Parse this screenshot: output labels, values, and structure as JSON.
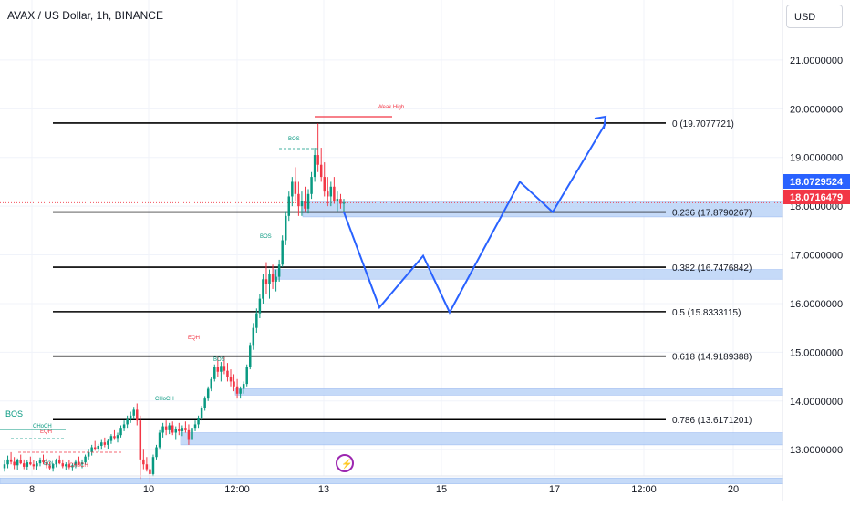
{
  "header": {
    "title": "AVAX / US Dollar, 1h, BINANCE",
    "currency": "USD"
  },
  "colors": {
    "up": "#089981",
    "down": "#f23645",
    "path": "#2962ff",
    "zone": "#bbd4f7",
    "zone_border": "#8fb2ef"
  },
  "chart_data": {
    "type": "candlestick",
    "title": "AVAX / US Dollar, 1h, BINANCE",
    "xlabel": "",
    "ylabel": "",
    "ylim": [
      12.3,
      22.0
    ],
    "x_tick_labels": [
      "8",
      "10",
      "12:00",
      "13",
      "15",
      "17",
      "12:00",
      "20"
    ],
    "y_tick_labels": [
      "13.0000000",
      "14.0000000",
      "15.0000000",
      "16.0000000",
      "17.0000000",
      "18.0000000",
      "19.0000000",
      "20.0000000",
      "21.0000000"
    ],
    "y_ticks": [
      13,
      14,
      15,
      16,
      17,
      18,
      19,
      20,
      21
    ],
    "price_badges": [
      {
        "text": "18.0729524",
        "value": 18.0729524,
        "color": "#2962ff"
      },
      {
        "text": "18.0716479",
        "value": 18.0716479,
        "color": "#f23645"
      }
    ],
    "fib_levels": [
      {
        "label": "0 (19.7077721)",
        "value": 19.7077721
      },
      {
        "label": "0.236 (17.8790267)",
        "value": 17.8790267
      },
      {
        "label": "0.382 (16.7476842)",
        "value": 16.7476842
      },
      {
        "label": "0.5 (15.8333115)",
        "value": 15.8333115
      },
      {
        "label": "0.618 (14.9189388)",
        "value": 14.9189388
      },
      {
        "label": "0.786 (13.6171201)",
        "value": 13.6171201
      }
    ],
    "zones": [
      {
        "low": 17.78,
        "high": 18.1
      },
      {
        "low": 16.5,
        "high": 16.7
      },
      {
        "low": 14.12,
        "high": 14.25
      },
      {
        "low": 13.1,
        "high": 13.35
      },
      {
        "low": 12.3,
        "high": 12.42
      }
    ],
    "annotations": [
      {
        "text": "BOS",
        "color": "#089981"
      },
      {
        "text": "CHoCH",
        "color": "#089981"
      },
      {
        "text": "EQH",
        "color": "#f23645"
      },
      {
        "text": "EQL",
        "color": "#089981"
      },
      {
        "text": "CHoCH",
        "color": "#f23645"
      },
      {
        "text": "CHoCH",
        "color": "#089981"
      },
      {
        "text": "BOS",
        "color": "#089981"
      },
      {
        "text": "EQH",
        "color": "#f23645"
      },
      {
        "text": "BOS",
        "color": "#089981"
      },
      {
        "text": "BOS",
        "color": "#089981"
      },
      {
        "text": "Weak High",
        "color": "#f23645"
      }
    ],
    "projection_path": [
      17.88,
      15.92,
      16.98,
      15.82,
      18.5,
      17.88,
      19.7
    ],
    "candles": [
      [
        12.62,
        12.78,
        12.55,
        12.7
      ],
      [
        12.7,
        12.88,
        12.62,
        12.8
      ],
      [
        12.8,
        12.95,
        12.7,
        12.75
      ],
      [
        12.75,
        12.85,
        12.6,
        12.68
      ],
      [
        12.68,
        12.82,
        12.58,
        12.78
      ],
      [
        12.78,
        12.9,
        12.7,
        12.72
      ],
      [
        12.72,
        12.8,
        12.6,
        12.65
      ],
      [
        12.65,
        12.78,
        12.58,
        12.74
      ],
      [
        12.74,
        12.86,
        12.68,
        12.7
      ],
      [
        12.7,
        12.78,
        12.6,
        12.66
      ],
      [
        12.66,
        12.76,
        12.58,
        12.72
      ],
      [
        12.72,
        12.84,
        12.66,
        12.78
      ],
      [
        12.78,
        12.9,
        12.7,
        12.74
      ],
      [
        12.74,
        12.82,
        12.62,
        12.68
      ],
      [
        12.68,
        12.75,
        12.58,
        12.62
      ],
      [
        12.62,
        12.72,
        12.55,
        12.7
      ],
      [
        12.7,
        12.82,
        12.64,
        12.78
      ],
      [
        12.78,
        12.88,
        12.7,
        12.72
      ],
      [
        12.72,
        12.8,
        12.62,
        12.66
      ],
      [
        12.66,
        12.74,
        12.58,
        12.7
      ],
      [
        12.7,
        12.78,
        12.6,
        12.64
      ],
      [
        12.64,
        12.72,
        12.56,
        12.68
      ],
      [
        12.68,
        12.8,
        12.62,
        12.75
      ],
      [
        12.75,
        12.86,
        12.68,
        12.7
      ],
      [
        12.7,
        12.8,
        12.62,
        12.74
      ],
      [
        12.74,
        12.9,
        12.7,
        12.86
      ],
      [
        12.86,
        13.0,
        12.8,
        12.95
      ],
      [
        12.95,
        13.1,
        12.88,
        13.05
      ],
      [
        13.05,
        13.18,
        12.98,
        13.02
      ],
      [
        13.02,
        13.12,
        12.95,
        13.08
      ],
      [
        13.08,
        13.2,
        13.0,
        13.15
      ],
      [
        13.15,
        13.25,
        13.05,
        13.1
      ],
      [
        13.1,
        13.22,
        13.02,
        13.18
      ],
      [
        13.18,
        13.32,
        13.12,
        13.28
      ],
      [
        13.28,
        13.4,
        13.2,
        13.24
      ],
      [
        13.24,
        13.35,
        13.15,
        13.3
      ],
      [
        13.3,
        13.5,
        13.25,
        13.45
      ],
      [
        13.45,
        13.6,
        13.38,
        13.52
      ],
      [
        13.52,
        13.7,
        13.45,
        13.62
      ],
      [
        13.62,
        13.78,
        13.55,
        13.7
      ],
      [
        13.7,
        13.88,
        13.62,
        13.82
      ],
      [
        13.82,
        13.95,
        13.5,
        13.6
      ],
      [
        13.6,
        13.7,
        12.4,
        12.8
      ],
      [
        12.8,
        13.0,
        12.6,
        12.7
      ],
      [
        12.7,
        12.85,
        12.55,
        12.6
      ],
      [
        12.6,
        12.7,
        12.32,
        12.5
      ],
      [
        12.5,
        12.9,
        12.45,
        12.85
      ],
      [
        12.85,
        13.1,
        12.8,
        13.05
      ],
      [
        13.05,
        13.4,
        13.0,
        13.35
      ],
      [
        13.35,
        13.55,
        13.25,
        13.48
      ],
      [
        13.48,
        13.6,
        13.3,
        13.4
      ],
      [
        13.4,
        13.55,
        13.32,
        13.5
      ],
      [
        13.5,
        13.58,
        13.3,
        13.35
      ],
      [
        13.35,
        13.48,
        13.2,
        13.42
      ],
      [
        13.42,
        13.55,
        13.3,
        13.38
      ],
      [
        13.38,
        13.5,
        13.28,
        13.45
      ],
      [
        13.45,
        13.58,
        13.35,
        13.4
      ],
      [
        13.4,
        13.52,
        13.1,
        13.2
      ],
      [
        13.2,
        13.5,
        13.15,
        13.45
      ],
      [
        13.45,
        13.6,
        13.38,
        13.52
      ],
      [
        13.52,
        13.7,
        13.45,
        13.65
      ],
      [
        13.65,
        13.9,
        13.6,
        13.85
      ],
      [
        13.85,
        14.1,
        13.8,
        14.05
      ],
      [
        14.05,
        14.3,
        14.0,
        14.25
      ],
      [
        14.25,
        14.5,
        14.2,
        14.45
      ],
      [
        14.45,
        14.75,
        14.4,
        14.7
      ],
      [
        14.7,
        14.9,
        14.5,
        14.6
      ],
      [
        14.6,
        14.8,
        14.4,
        14.72
      ],
      [
        14.72,
        14.9,
        14.55,
        14.62
      ],
      [
        14.62,
        14.78,
        14.4,
        14.5
      ],
      [
        14.5,
        14.65,
        14.3,
        14.4
      ],
      [
        14.4,
        14.55,
        14.2,
        14.3
      ],
      [
        14.3,
        14.45,
        14.05,
        14.15
      ],
      [
        14.15,
        14.3,
        14.05,
        14.25
      ],
      [
        14.25,
        14.4,
        14.15,
        14.35
      ],
      [
        14.35,
        14.75,
        14.3,
        14.7
      ],
      [
        14.7,
        15.2,
        14.65,
        15.15
      ],
      [
        15.15,
        15.6,
        15.05,
        15.5
      ],
      [
        15.5,
        15.9,
        15.4,
        15.8
      ],
      [
        15.8,
        16.2,
        15.7,
        16.1
      ],
      [
        16.1,
        16.6,
        16.0,
        16.5
      ],
      [
        16.5,
        16.85,
        16.2,
        16.4
      ],
      [
        16.4,
        16.7,
        16.1,
        16.6
      ],
      [
        16.6,
        16.8,
        16.3,
        16.45
      ],
      [
        16.45,
        16.7,
        16.25,
        16.55
      ],
      [
        16.55,
        16.9,
        16.45,
        16.8
      ],
      [
        16.8,
        17.4,
        16.75,
        17.3
      ],
      [
        17.3,
        17.9,
        17.2,
        17.8
      ],
      [
        17.8,
        18.3,
        17.7,
        18.2
      ],
      [
        18.2,
        18.6,
        18.0,
        18.5
      ],
      [
        18.5,
        18.8,
        18.1,
        18.25
      ],
      [
        18.25,
        18.5,
        17.8,
        18.0
      ],
      [
        18.0,
        18.3,
        17.8,
        18.1
      ],
      [
        18.1,
        18.4,
        17.9,
        17.95
      ],
      [
        17.95,
        18.35,
        17.85,
        18.25
      ],
      [
        18.25,
        18.7,
        18.15,
        18.6
      ],
      [
        18.6,
        19.2,
        18.5,
        19.05
      ],
      [
        19.05,
        19.7,
        18.7,
        18.85
      ],
      [
        18.85,
        19.2,
        18.5,
        18.6
      ],
      [
        18.6,
        18.9,
        18.2,
        18.3
      ],
      [
        18.3,
        18.6,
        18.0,
        18.2
      ],
      [
        18.2,
        18.5,
        18.0,
        18.4
      ],
      [
        18.4,
        18.6,
        18.05,
        18.1
      ],
      [
        18.1,
        18.3,
        17.9,
        18.15
      ],
      [
        18.15,
        18.25,
        17.95,
        18.05
      ],
      [
        18.05,
        18.15,
        17.9,
        18.07
      ]
    ]
  }
}
